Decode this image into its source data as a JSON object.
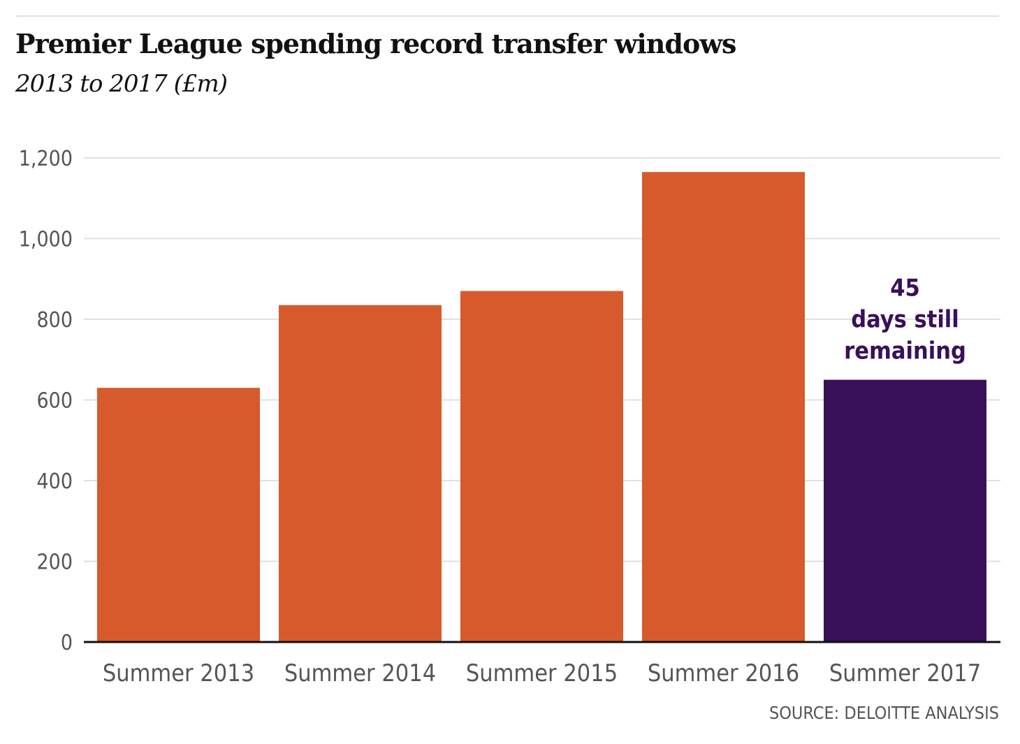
{
  "chart_data": {
    "type": "bar",
    "title": "Premier League spending record transfer windows",
    "subtitle": "2013 to 2017 (£m)",
    "categories": [
      "Summer 2013",
      "Summer 2014",
      "Summer 2015",
      "Summer 2016",
      "Summer 2017"
    ],
    "values": [
      630,
      835,
      870,
      1165,
      650
    ],
    "highlight_index": 4,
    "annotation": {
      "category": "Summer 2017",
      "lines": [
        "45",
        "days still",
        "remaining"
      ]
    },
    "ylim": [
      0,
      1200
    ],
    "yticks": [
      0,
      200,
      400,
      600,
      800,
      1000,
      1200
    ],
    "ytick_labels": [
      "0",
      "200",
      "400",
      "600",
      "800",
      "1,000",
      "1,200"
    ],
    "xlabel": "",
    "ylabel": "",
    "grid": true,
    "colors": {
      "bar": "#d65a2c",
      "highlight": "#39105a",
      "annotation": "#39105a",
      "grid": "#e0e0e0",
      "axis": "#111111",
      "tick_text": "#555555"
    },
    "source": "SOURCE: DELOITTE ANALYSIS"
  }
}
